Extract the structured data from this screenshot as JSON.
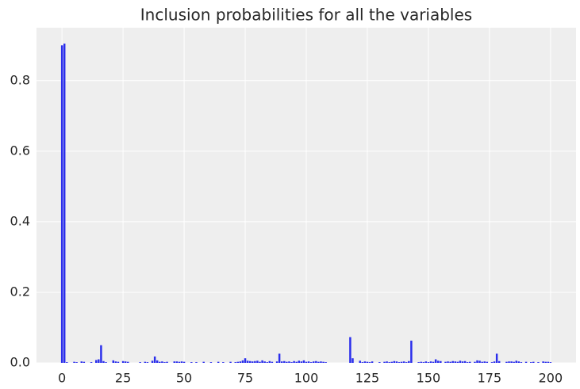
{
  "chart_data": {
    "type": "bar",
    "title": "Inclusion probabilities for all the variables",
    "x": [
      0,
      1,
      2,
      3,
      4,
      5,
      6,
      7,
      8,
      9,
      10,
      11,
      12,
      13,
      14,
      15,
      16,
      17,
      18,
      19,
      20,
      21,
      22,
      23,
      24,
      25,
      26,
      27,
      28,
      29,
      30,
      31,
      32,
      33,
      34,
      35,
      36,
      37,
      38,
      39,
      40,
      41,
      42,
      43,
      44,
      45,
      46,
      47,
      48,
      49,
      50,
      51,
      52,
      53,
      54,
      55,
      56,
      57,
      58,
      59,
      60,
      61,
      62,
      63,
      64,
      65,
      66,
      67,
      68,
      69,
      70,
      71,
      72,
      73,
      74,
      75,
      76,
      77,
      78,
      79,
      80,
      81,
      82,
      83,
      84,
      85,
      86,
      87,
      88,
      89,
      90,
      91,
      92,
      93,
      94,
      95,
      96,
      97,
      98,
      99,
      100,
      101,
      102,
      103,
      104,
      105,
      106,
      107,
      108,
      109,
      110,
      111,
      112,
      113,
      114,
      115,
      116,
      117,
      118,
      119,
      120,
      121,
      122,
      123,
      124,
      125,
      126,
      127,
      128,
      129,
      130,
      131,
      132,
      133,
      134,
      135,
      136,
      137,
      138,
      139,
      140,
      141,
      142,
      143,
      144,
      145,
      146,
      147,
      148,
      149,
      150,
      151,
      152,
      153,
      154,
      155,
      156,
      157,
      158,
      159,
      160,
      161,
      162,
      163,
      164,
      165,
      166,
      167,
      168,
      169,
      170,
      171,
      172,
      173,
      174,
      175,
      176,
      177,
      178,
      179,
      180,
      181,
      182,
      183,
      184,
      185,
      186,
      187,
      188,
      189,
      190,
      191,
      192,
      193,
      194,
      195,
      196,
      197,
      198,
      199,
      200
    ],
    "values": [
      0.9,
      0.905,
      0.002,
      0,
      0,
      0.003,
      0.002,
      0,
      0.004,
      0.003,
      0,
      0,
      0.002,
      0,
      0.008,
      0.01,
      0.05,
      0.005,
      0.002,
      0,
      0,
      0.007,
      0.004,
      0.003,
      0,
      0.005,
      0.004,
      0.003,
      0,
      0,
      0,
      0,
      0.002,
      0,
      0.003,
      0.002,
      0,
      0.006,
      0.018,
      0.007,
      0.003,
      0.004,
      0.002,
      0.003,
      0,
      0,
      0.004,
      0.004,
      0.003,
      0.004,
      0.003,
      0,
      0,
      0.002,
      0,
      0.002,
      0,
      0,
      0.003,
      0,
      0,
      0.002,
      0,
      0,
      0.003,
      0,
      0.002,
      0,
      0,
      0.003,
      0,
      0.002,
      0.003,
      0.004,
      0.007,
      0.013,
      0.006,
      0.005,
      0.004,
      0.005,
      0.006,
      0.003,
      0.007,
      0.004,
      0.002,
      0.005,
      0.003,
      0,
      0.004,
      0.026,
      0.004,
      0.005,
      0.003,
      0.004,
      0.002,
      0.005,
      0.003,
      0.006,
      0.004,
      0.007,
      0.003,
      0.004,
      0.002,
      0.004,
      0.005,
      0.003,
      0.004,
      0.003,
      0.002,
      0,
      0,
      0,
      0,
      0,
      0,
      0,
      0,
      0,
      0.073,
      0.013,
      0,
      0,
      0.006,
      0.002,
      0.004,
      0.003,
      0.002,
      0.004,
      0,
      0,
      0.002,
      0,
      0.003,
      0.004,
      0.002,
      0.003,
      0.005,
      0.004,
      0.002,
      0.003,
      0.004,
      0.002,
      0.005,
      0.063,
      0,
      0,
      0.002,
      0.003,
      0.002,
      0.004,
      0.002,
      0.004,
      0.003,
      0.01,
      0.006,
      0.005,
      0,
      0.003,
      0.004,
      0.003,
      0.005,
      0.004,
      0.003,
      0.006,
      0.004,
      0.005,
      0.002,
      0.003,
      0,
      0.003,
      0.007,
      0.006,
      0.003,
      0.004,
      0.003,
      0,
      0.002,
      0.004,
      0.026,
      0.005,
      0,
      0,
      0.003,
      0.004,
      0.004,
      0.003,
      0.006,
      0.004,
      0.002,
      0,
      0.003,
      0,
      0.002,
      0.003,
      0,
      0.002,
      0,
      0.004,
      0.003,
      0.003,
      0.002
    ],
    "color": "#2a2eec",
    "xlim": [
      -10.44,
      210.44
    ],
    "xticks": [
      0,
      25,
      50,
      75,
      100,
      125,
      150,
      175,
      200
    ],
    "ylim": [
      0,
      0.95
    ],
    "yticks": [
      {
        "value": 0,
        "label": "0.0"
      },
      0.2,
      0.4,
      0.6,
      0.8
    ],
    "grid": true
  }
}
